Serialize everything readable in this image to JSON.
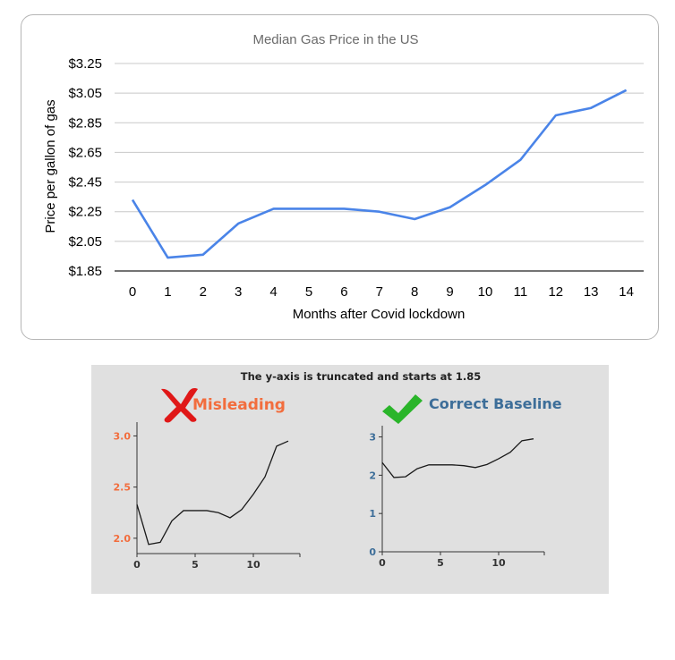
{
  "main_chart": {
    "title": "Median Gas Price in the US",
    "ylabel": "Price per gallon of gas",
    "xlabel": "Months after Covid lockdown",
    "ytick_labels": [
      "$1.85",
      "$2.05",
      "$2.25",
      "$2.45",
      "$2.65",
      "$2.85",
      "$3.05",
      "$3.25"
    ],
    "line_color": "#4a84e8"
  },
  "panel": {
    "caption": "The y-axis is truncated and starts at 1.85",
    "left_heading": "Misleading",
    "right_heading": "Correct Baseline",
    "left_color": "#f26d3d",
    "right_color": "#3d6e99",
    "cross_color": "#e01818",
    "check_color": "#2ab52a"
  },
  "chart_data": [
    {
      "type": "line",
      "title": "Median Gas Price in the US",
      "xlabel": "Months after Covid lockdown",
      "ylabel": "Price per gallon of gas",
      "x": [
        0,
        1,
        2,
        3,
        4,
        5,
        6,
        7,
        8,
        9,
        10,
        11,
        12,
        13,
        14
      ],
      "y": [
        2.33,
        1.94,
        1.96,
        2.17,
        2.27,
        2.27,
        2.27,
        2.25,
        2.2,
        2.28,
        2.43,
        2.6,
        2.9,
        2.95,
        3.07
      ],
      "ylim": [
        1.85,
        3.25
      ],
      "xlim": [
        0,
        14
      ],
      "grid": true
    },
    {
      "type": "line",
      "title": "Misleading",
      "x": [
        0,
        1,
        2,
        3,
        4,
        5,
        6,
        7,
        8,
        9,
        10,
        11,
        12,
        13
      ],
      "y": [
        2.33,
        1.94,
        1.96,
        2.17,
        2.27,
        2.27,
        2.27,
        2.25,
        2.2,
        2.28,
        2.43,
        2.6,
        2.9,
        2.95
      ],
      "yticks": [
        "2.0",
        "2.5",
        "3.0"
      ],
      "xticks": [
        "0",
        "5",
        "10"
      ],
      "ylim": [
        1.85,
        3.1
      ],
      "xlim": [
        0,
        14
      ]
    },
    {
      "type": "line",
      "title": "Correct Baseline",
      "x": [
        0,
        1,
        2,
        3,
        4,
        5,
        6,
        7,
        8,
        9,
        10,
        11,
        12,
        13
      ],
      "y": [
        2.33,
        1.94,
        1.96,
        2.17,
        2.27,
        2.27,
        2.27,
        2.25,
        2.2,
        2.28,
        2.43,
        2.6,
        2.9,
        2.95
      ],
      "yticks": [
        "0",
        "1",
        "2",
        "3"
      ],
      "xticks": [
        "0",
        "5",
        "10"
      ],
      "ylim": [
        0,
        3.2
      ],
      "xlim": [
        0,
        14
      ]
    }
  ]
}
